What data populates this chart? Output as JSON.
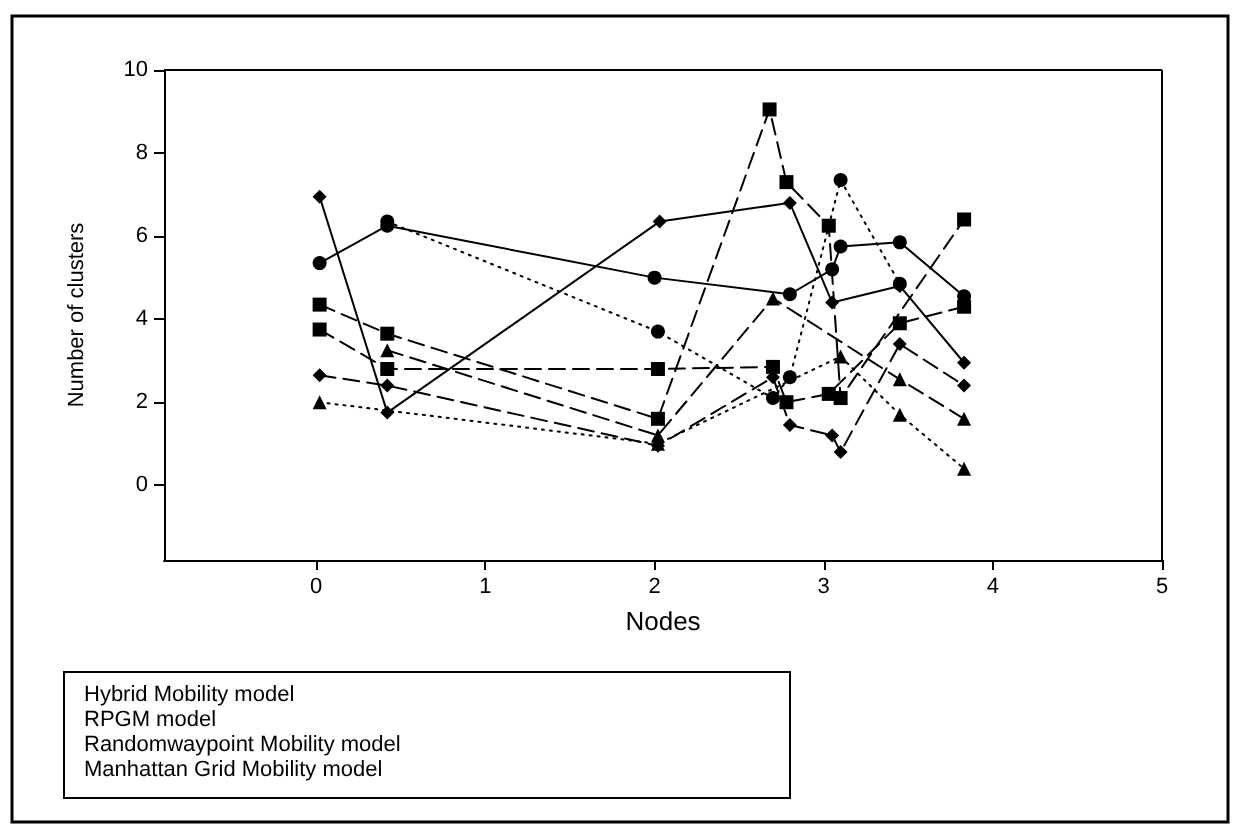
{
  "chart_data": {
    "type": "line",
    "xlabel": "Nodes",
    "ylabel": "Number of clusters",
    "xlim": [
      -0.9,
      5
    ],
    "xticks": [
      0,
      1,
      2,
      3,
      4,
      5
    ],
    "ylim": [
      -1.8,
      10
    ],
    "yticks": [
      0,
      2,
      4,
      6,
      8,
      10
    ],
    "grid": false,
    "annotations": [
      "Hybrid Mobility model",
      "RPGM model",
      "Randomwaypoint Mobility model",
      "Manhattan Grid Mobility model"
    ],
    "series": [
      {
        "color": "#000000",
        "marker": "diamond",
        "line_style": "solid",
        "x": [
          0.02,
          0.42,
          2.03,
          2.8,
          3.05,
          3.45,
          3.83
        ],
        "values": [
          6.95,
          1.75,
          6.35,
          6.8,
          4.4,
          4.8,
          2.95
        ]
      },
      {
        "color": "#000000",
        "marker": "circle",
        "line_style": "solid",
        "x": [
          0.02,
          0.42,
          2.0,
          2.8,
          3.05,
          3.1,
          3.45,
          3.83
        ],
        "values": [
          5.35,
          6.25,
          5.0,
          4.6,
          5.2,
          5.75,
          5.85,
          4.55
        ]
      },
      {
        "color": "#000000",
        "marker": "square",
        "line_style": "dashed",
        "x": [
          0.02,
          0.42,
          2.02,
          2.68,
          2.78,
          3.03,
          3.1,
          3.83
        ],
        "values": [
          4.35,
          3.65,
          1.6,
          9.05,
          7.3,
          6.25,
          2.1,
          6.4
        ]
      },
      {
        "color": "#000000",
        "marker": "square",
        "line_style": "dashed",
        "x": [
          0.02,
          0.42,
          2.02,
          2.7,
          2.78,
          3.03,
          3.45,
          3.83
        ],
        "values": [
          3.75,
          2.8,
          2.8,
          2.85,
          2.0,
          2.2,
          3.9,
          4.3
        ]
      },
      {
        "color": "#000000",
        "marker": "triangle",
        "line_style": "dashed",
        "x": [
          0.42,
          2.02,
          2.7,
          3.45,
          3.83
        ],
        "values": [
          3.25,
          1.2,
          4.5,
          2.55,
          1.6
        ]
      },
      {
        "color": "#000000",
        "marker": "diamond",
        "line_style": "dashed",
        "x": [
          0.02,
          0.42,
          2.02,
          2.7,
          2.8,
          3.05,
          3.1,
          3.45,
          3.83
        ],
        "values": [
          2.65,
          2.4,
          0.95,
          2.6,
          1.45,
          1.2,
          0.8,
          3.4,
          2.4
        ]
      },
      {
        "color": "#000000",
        "marker": "circle",
        "line_style": "dotted",
        "x": [
          0.42,
          2.02,
          2.7,
          2.8,
          3.1,
          3.45
        ],
        "values": [
          6.35,
          3.7,
          2.1,
          2.6,
          7.35,
          4.85
        ]
      },
      {
        "color": "#000000",
        "marker": "triangle",
        "line_style": "dotted",
        "x": [
          0.02,
          2.02,
          3.1,
          3.45,
          3.83
        ],
        "values": [
          2.0,
          1.0,
          3.1,
          1.7,
          0.4
        ]
      }
    ]
  }
}
